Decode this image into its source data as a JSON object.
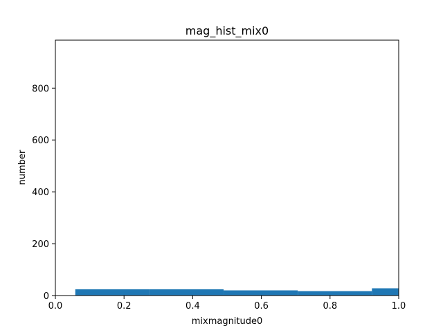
{
  "chart_data": {
    "type": "bar",
    "title": "mag_hist_mix0",
    "xlabel": "mixmagnitude0",
    "ylabel": "number",
    "xlim": [
      0.0,
      1.0
    ],
    "ylim": [
      0,
      985
    ],
    "x_ticks": [
      0.0,
      0.2,
      0.4,
      0.6,
      0.8,
      1.0
    ],
    "x_tick_labels": [
      "0.0",
      "0.2",
      "0.4",
      "0.6",
      "0.8",
      "1.0"
    ],
    "y_ticks": [
      0,
      200,
      400,
      600,
      800
    ],
    "y_tick_labels": [
      "0",
      "200",
      "400",
      "600",
      "800"
    ],
    "bins": [
      {
        "x0": 0.058,
        "x1": 0.274,
        "value": 24
      },
      {
        "x0": 0.274,
        "x1": 0.49,
        "value": 24
      },
      {
        "x0": 0.49,
        "x1": 0.706,
        "value": 20
      },
      {
        "x0": 0.706,
        "x1": 0.922,
        "value": 17
      },
      {
        "x0": 0.922,
        "x1": 1.138,
        "value": 28
      }
    ],
    "bar_color": "#1f77b4",
    "grid": false,
    "legend": "none"
  }
}
